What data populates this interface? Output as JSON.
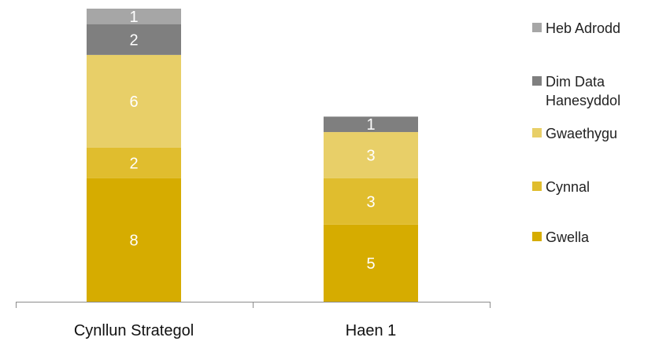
{
  "chart_data": {
    "type": "bar",
    "stacked": true,
    "categories": [
      "Cynllun Strategol",
      "Haen 1"
    ],
    "series": [
      {
        "name": "Gwella",
        "values": [
          8,
          5
        ],
        "color": "#d6ac00",
        "labels": [
          "8",
          "5"
        ]
      },
      {
        "name": "Cynnal",
        "values": [
          2,
          3
        ],
        "color": "#e0bd2e",
        "labels": [
          "2",
          "3"
        ]
      },
      {
        "name": "Gwaethygu",
        "values": [
          6,
          3
        ],
        "color": "#e8cf68",
        "labels": [
          "6",
          "3"
        ]
      },
      {
        "name": "Dim Data Hanesyddol",
        "values": [
          2,
          1
        ],
        "color": "#7f7f7f",
        "labels": [
          "2",
          "1"
        ]
      },
      {
        "name": "Heb Adrodd",
        "values": [
          1,
          0
        ],
        "color": "#a6a6a6",
        "labels": [
          "1",
          ""
        ]
      }
    ],
    "ylim": [
      0,
      19
    ],
    "grid": false,
    "legend_position": "right"
  }
}
